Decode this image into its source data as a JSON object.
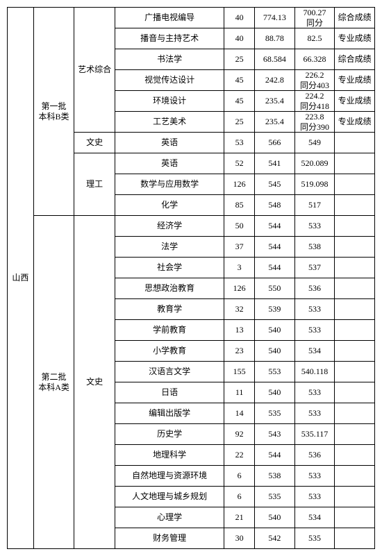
{
  "province": "山西",
  "batch1": "第一批\n本科B类",
  "batch2": "第二批\n本科A类",
  "cat_art": "艺术综合",
  "cat_wen": "文史",
  "cat_li": "理工",
  "rows": [
    {
      "major": "广播电视编导",
      "c1": "40",
      "c2": "774.13",
      "c3": "700.27\n同分",
      "note": "综合成绩"
    },
    {
      "major": "播音与主持艺术",
      "c1": "40",
      "c2": "88.78",
      "c3": "82.5",
      "note": "专业成绩"
    },
    {
      "major": "书法学",
      "c1": "25",
      "c2": "68.584",
      "c3": "66.328",
      "note": "综合成绩"
    },
    {
      "major": "视觉传达设计",
      "c1": "45",
      "c2": "242.8",
      "c3": "226.2\n同分403",
      "note": "专业成绩"
    },
    {
      "major": "环境设计",
      "c1": "45",
      "c2": "235.4",
      "c3": "224.2\n同分418",
      "note": "专业成绩"
    },
    {
      "major": "工艺美术",
      "c1": "25",
      "c2": "235.4",
      "c3": "223.8\n同分390",
      "note": "专业成绩"
    },
    {
      "major": "英语",
      "c1": "53",
      "c2": "566",
      "c3": "549",
      "note": ""
    },
    {
      "major": "英语",
      "c1": "52",
      "c2": "541",
      "c3": "520.089",
      "note": ""
    },
    {
      "major": "数学与应用数学",
      "c1": "126",
      "c2": "545",
      "c3": "519.098",
      "note": ""
    },
    {
      "major": "化学",
      "c1": "85",
      "c2": "548",
      "c3": "517",
      "note": ""
    },
    {
      "major": "经济学",
      "c1": "50",
      "c2": "544",
      "c3": "533",
      "note": ""
    },
    {
      "major": "法学",
      "c1": "37",
      "c2": "544",
      "c3": "538",
      "note": ""
    },
    {
      "major": "社会学",
      "c1": "3",
      "c2": "544",
      "c3": "537",
      "note": ""
    },
    {
      "major": "思想政治教育",
      "c1": "126",
      "c2": "550",
      "c3": "536",
      "note": ""
    },
    {
      "major": "教育学",
      "c1": "32",
      "c2": "539",
      "c3": "533",
      "note": ""
    },
    {
      "major": "学前教育",
      "c1": "13",
      "c2": "540",
      "c3": "533",
      "note": ""
    },
    {
      "major": "小学教育",
      "c1": "23",
      "c2": "540",
      "c3": "534",
      "note": ""
    },
    {
      "major": "汉语言文学",
      "c1": "155",
      "c2": "553",
      "c3": "540.118",
      "note": ""
    },
    {
      "major": "日语",
      "c1": "11",
      "c2": "540",
      "c3": "533",
      "note": ""
    },
    {
      "major": "编辑出版学",
      "c1": "14",
      "c2": "535",
      "c3": "533",
      "note": ""
    },
    {
      "major": "历史学",
      "c1": "92",
      "c2": "543",
      "c3": "535.117",
      "note": ""
    },
    {
      "major": "地理科学",
      "c1": "22",
      "c2": "544",
      "c3": "536",
      "note": ""
    },
    {
      "major": "自然地理与资源环境",
      "c1": "6",
      "c2": "538",
      "c3": "533",
      "note": ""
    },
    {
      "major": "人文地理与城乡规划",
      "c1": "6",
      "c2": "535",
      "c3": "533",
      "note": ""
    },
    {
      "major": "心理学",
      "c1": "21",
      "c2": "540",
      "c3": "534",
      "note": ""
    },
    {
      "major": "财务管理",
      "c1": "30",
      "c2": "542",
      "c3": "535",
      "note": ""
    }
  ]
}
